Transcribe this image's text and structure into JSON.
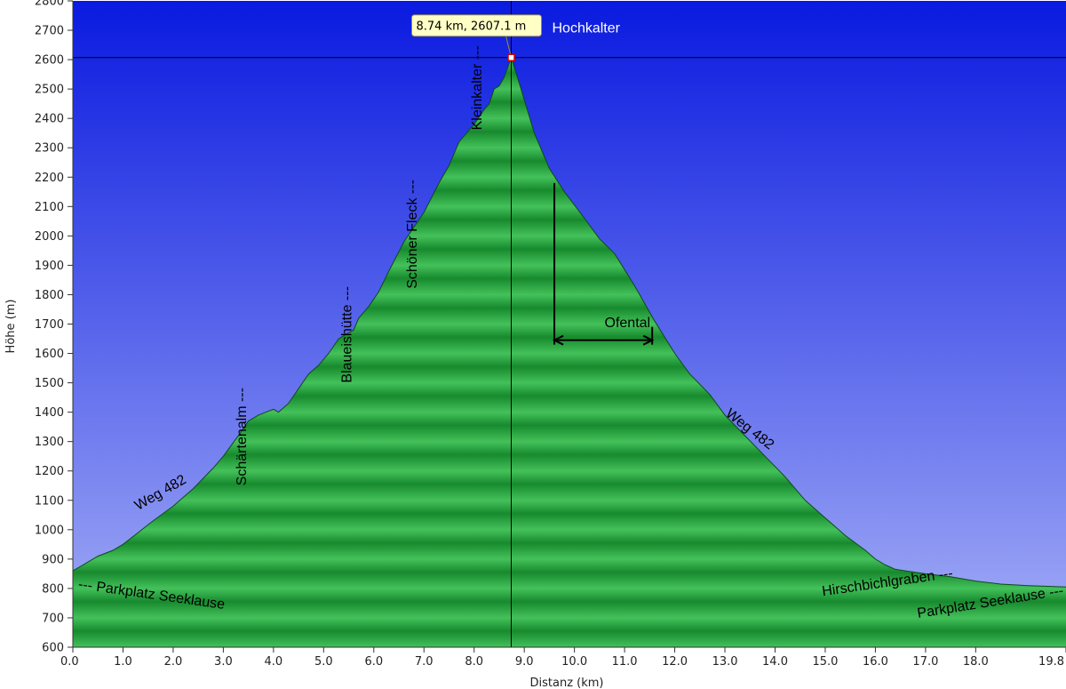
{
  "chart_data": {
    "type": "area",
    "title": "",
    "xlabel": "Distanz  (km)",
    "ylabel": "Höhe (m)",
    "xlim": [
      0,
      19.8
    ],
    "ylim": [
      600,
      2800
    ],
    "x_ticks": [
      "0.0",
      "1.0",
      "2.0",
      "3.0",
      "4.0",
      "5.0",
      "6.0",
      "7.0",
      "8.0",
      "9.0",
      "10.0",
      "11.0",
      "12.0",
      "13.0",
      "14.0",
      "15.0",
      "16.0",
      "17.0",
      "18.0",
      "19.8"
    ],
    "x_tick_values": [
      0,
      1,
      2,
      3,
      4,
      5,
      6,
      7,
      8,
      9,
      10,
      11,
      12,
      13,
      14,
      15,
      16,
      17,
      18,
      19.8
    ],
    "y_ticks": [
      600,
      700,
      800,
      900,
      1000,
      1100,
      1200,
      1300,
      1400,
      1500,
      1600,
      1700,
      1800,
      1900,
      2000,
      2100,
      2200,
      2300,
      2400,
      2500,
      2600,
      2700,
      2800
    ],
    "series": [
      {
        "x": [
          0,
          0.2,
          0.5,
          0.8,
          1.0,
          1.3,
          1.6,
          2.0,
          2.4,
          2.8,
          3.0,
          3.3,
          3.5,
          3.7,
          4.0,
          4.1,
          4.3,
          4.5,
          4.7,
          4.9,
          5.1,
          5.3,
          5.6,
          5.7,
          5.9,
          6.1,
          6.3,
          6.6,
          6.8,
          7.0,
          7.3,
          7.5,
          7.7,
          8.0,
          8.2,
          8.3,
          8.4,
          8.5,
          8.6,
          8.74,
          8.9,
          9.2,
          9.5,
          9.8,
          10.2,
          10.5,
          10.8,
          11.2,
          11.6,
          12.0,
          12.3,
          12.7,
          13.0,
          13.4,
          13.8,
          14.2,
          14.6,
          15.0,
          15.4,
          15.8,
          16.0,
          16.2,
          16.4,
          16.6,
          17.0,
          17.5,
          18.0,
          18.5,
          19.0,
          19.8
        ],
        "y": [
          860,
          880,
          910,
          930,
          950,
          990,
          1030,
          1080,
          1140,
          1210,
          1250,
          1320,
          1370,
          1390,
          1410,
          1400,
          1430,
          1480,
          1530,
          1560,
          1600,
          1650,
          1680,
          1720,
          1760,
          1810,
          1880,
          1980,
          2030,
          2080,
          2180,
          2240,
          2320,
          2380,
          2430,
          2450,
          2500,
          2510,
          2540,
          2607,
          2520,
          2350,
          2230,
          2150,
          2060,
          1990,
          1940,
          1830,
          1710,
          1600,
          1530,
          1460,
          1390,
          1320,
          1250,
          1180,
          1100,
          1040,
          980,
          930,
          900,
          880,
          865,
          860,
          850,
          840,
          825,
          815,
          810,
          805
        ]
      }
    ],
    "marker": {
      "x": 8.74,
      "y": 2607.1,
      "label": "8.74 km, 2607.1 m",
      "name": "Hochkalter"
    },
    "annotations": [
      {
        "text": "--- Parkplatz Seeklause",
        "x": 0.1,
        "y": 800,
        "rotate": 8
      },
      {
        "text": "Weg 482",
        "x": 1.3,
        "y": 1065,
        "rotate": -30
      },
      {
        "text": "Schärtenalm ---",
        "x": 3.45,
        "y": 1150,
        "rotate": -90
      },
      {
        "text": "Blaueishütte ---",
        "x": 5.55,
        "y": 1500,
        "rotate": -90
      },
      {
        "text": "Schöner Fleck ---",
        "x": 6.85,
        "y": 1820,
        "rotate": -90
      },
      {
        "text": "Kleinkalter ---",
        "x": 8.15,
        "y": 2360,
        "rotate": -90
      },
      {
        "text": "Ofental",
        "x": 10.6,
        "y": 1690,
        "rotate": 0
      },
      {
        "text": "Weg 482",
        "x": 13.0,
        "y": 1390,
        "rotate": 38
      },
      {
        "text": "Hirschbichlgraben ---",
        "x": 14.95,
        "y": 775,
        "rotate": -8
      },
      {
        "text": "Parkplatz Seeklause ---",
        "x": 16.85,
        "y": 700,
        "rotate": -9
      }
    ],
    "ofental_bracket": {
      "x_start": 9.6,
      "x_end": 11.55,
      "y_top": 2180,
      "y_arrow": 1645
    },
    "grid": false,
    "legend": "none",
    "colors": {
      "sky_top": "#0a1ae0",
      "sky_bottom": "#a4aef6",
      "fill_dark": "#178a2e",
      "fill_light": "#44c15a",
      "outline": "#0d4a18"
    }
  }
}
